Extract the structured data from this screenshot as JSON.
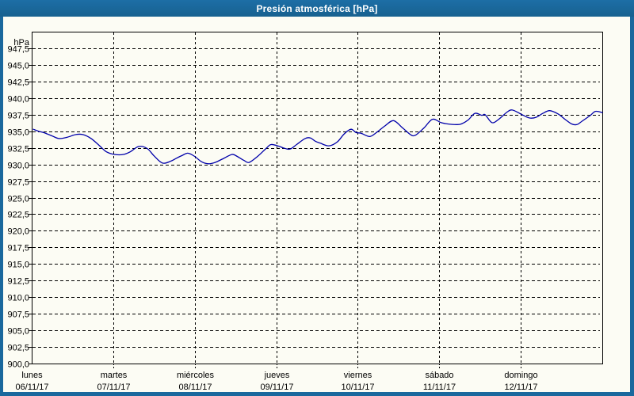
{
  "window": {
    "title": "Presión atmosférica [hPa]"
  },
  "colors": {
    "accent_blue": "#1a689d",
    "line_blue": "#0000aa",
    "plot_bg": "#fcfcf4",
    "grid_black": "#000000",
    "title_text": "#ffffff"
  },
  "chart_data": {
    "type": "line",
    "title": "Presión atmosférica [hPa]",
    "ylabel": "hPa",
    "unit": "hPa",
    "ylim": [
      900,
      950
    ],
    "ytick_step": 2.5,
    "ytick_labels": [
      "947,5",
      "945,0",
      "942,5",
      "940,0",
      "937,5",
      "935,0",
      "932,5",
      "930,0",
      "927,5",
      "925,0",
      "922,5",
      "920,0",
      "917,5",
      "915,0",
      "912,5",
      "910,0",
      "907,5",
      "905,0",
      "902,5",
      "900,0"
    ],
    "ytick_values": [
      947.5,
      945.0,
      942.5,
      940.0,
      937.5,
      935.0,
      932.5,
      930.0,
      927.5,
      925.0,
      922.5,
      920.0,
      917.5,
      915.0,
      912.5,
      910.0,
      907.5,
      905.0,
      902.5,
      900.0
    ],
    "x_days": [
      {
        "name": "lunes",
        "date": "06/11/17"
      },
      {
        "name": "martes",
        "date": "07/11/17"
      },
      {
        "name": "miércoles",
        "date": "08/11/17"
      },
      {
        "name": "jueves",
        "date": "09/11/17"
      },
      {
        "name": "viernes",
        "date": "10/11/17"
      },
      {
        "name": "sábado",
        "date": "11/11/17"
      },
      {
        "name": "domingo",
        "date": "12/11/17"
      }
    ],
    "x_unit": "hours from Monday 00:00",
    "xlim": [
      0,
      168
    ],
    "grid": "dashed",
    "legend": "none",
    "series": [
      {
        "name": "Presión atmosférica",
        "color": "#0000aa",
        "points": [
          [
            0.5,
            935.3
          ],
          [
            2,
            935.0
          ],
          [
            3.5,
            934.8
          ],
          [
            6,
            934.3
          ],
          [
            8,
            933.9
          ],
          [
            10.5,
            934.1
          ],
          [
            13,
            934.5
          ],
          [
            15,
            934.5
          ],
          [
            17.5,
            933.9
          ],
          [
            20,
            932.8
          ],
          [
            22,
            931.9
          ],
          [
            24.5,
            931.5
          ],
          [
            27,
            931.5
          ],
          [
            29,
            931.9
          ],
          [
            31.5,
            932.7
          ],
          [
            34,
            932.4
          ],
          [
            36,
            931.3
          ],
          [
            38.5,
            930.2
          ],
          [
            41,
            930.5
          ],
          [
            42.5,
            930.9
          ],
          [
            44.5,
            931.4
          ],
          [
            46,
            931.7
          ],
          [
            48,
            931.2
          ],
          [
            50,
            930.4
          ],
          [
            52,
            930.1
          ],
          [
            54,
            930.3
          ],
          [
            56.5,
            930.9
          ],
          [
            59,
            931.5
          ],
          [
            60.5,
            931.2
          ],
          [
            62.5,
            930.6
          ],
          [
            64,
            930.3
          ],
          [
            66.5,
            931.2
          ],
          [
            69,
            932.4
          ],
          [
            70.5,
            933.0
          ],
          [
            73,
            932.7
          ],
          [
            74,
            932.5
          ],
          [
            76,
            932.3
          ],
          [
            78,
            933.0
          ],
          [
            80.5,
            933.9
          ],
          [
            82,
            934.0
          ],
          [
            83.5,
            933.5
          ],
          [
            85,
            933.2
          ],
          [
            87.5,
            932.8
          ],
          [
            90,
            933.4
          ],
          [
            92,
            934.6
          ],
          [
            94,
            935.3
          ],
          [
            95.5,
            934.8
          ],
          [
            97,
            934.7
          ],
          [
            99.5,
            934.2
          ],
          [
            101.5,
            934.8
          ],
          [
            104,
            935.8
          ],
          [
            106.5,
            936.6
          ],
          [
            109,
            935.6
          ],
          [
            111.5,
            934.5
          ],
          [
            113,
            934.4
          ],
          [
            115.5,
            935.5
          ],
          [
            118,
            936.8
          ],
          [
            120.5,
            936.3
          ],
          [
            122.5,
            936.1
          ],
          [
            125,
            936.0
          ],
          [
            126.5,
            936.1
          ],
          [
            128.5,
            936.7
          ],
          [
            130.5,
            937.7
          ],
          [
            132.5,
            937.4
          ],
          [
            133.5,
            937.5
          ],
          [
            135.5,
            936.3
          ],
          [
            137.5,
            936.8
          ],
          [
            140,
            937.9
          ],
          [
            141.5,
            938.2
          ],
          [
            144,
            937.6
          ],
          [
            146.5,
            937.0
          ],
          [
            148.5,
            937.1
          ],
          [
            150.5,
            937.7
          ],
          [
            152.5,
            938.1
          ],
          [
            155,
            937.6
          ],
          [
            157,
            936.8
          ],
          [
            159,
            936.1
          ],
          [
            160.5,
            936.0
          ],
          [
            162,
            936.5
          ],
          [
            164.5,
            937.4
          ],
          [
            166,
            938.0
          ],
          [
            168,
            937.8
          ]
        ]
      }
    ]
  }
}
